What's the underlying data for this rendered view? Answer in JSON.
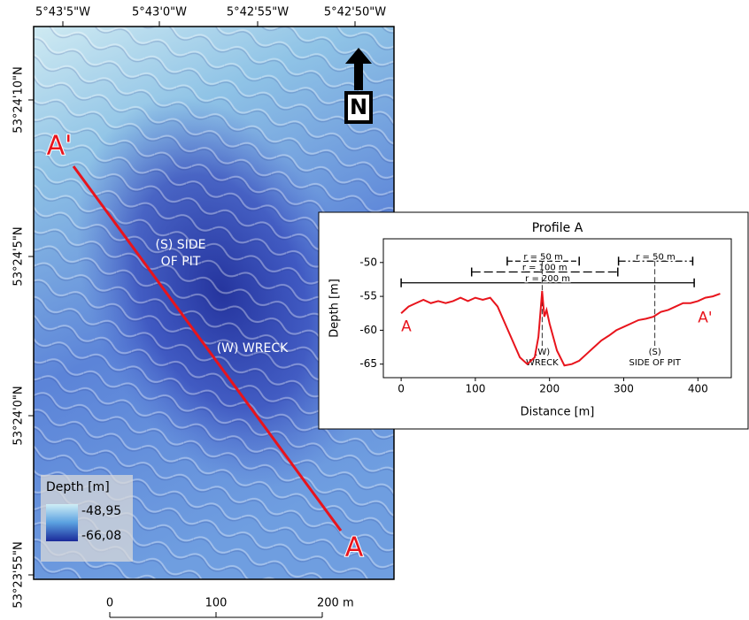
{
  "map": {
    "lon_labels": [
      "5°43'5\"W",
      "5°43'0\"W",
      "5°42'55\"W",
      "5°42'50\"W"
    ],
    "lat_labels": [
      "53°24'10\"N",
      "53°24'5\"N",
      "53°24'0\"N",
      "53°23'55\"N"
    ],
    "profile_start": "A",
    "profile_end": "A'",
    "side_of_pit": [
      "(S) SIDE",
      "OF PIT"
    ],
    "wreck": "(W) WRECK",
    "north": "N",
    "legend": {
      "title": "Depth [m]",
      "max": "-48,95",
      "min": "-66,08"
    },
    "scale_labels": [
      "0",
      "100",
      "200 m"
    ]
  },
  "chart_data": {
    "type": "line",
    "title": "Profile A",
    "x_label": "Distance [m]",
    "y_label": "Depth [m]",
    "xlim": [
      -24,
      445
    ],
    "ylim": [
      -67,
      -46.5
    ],
    "xticks": [
      0,
      100,
      200,
      300,
      400
    ],
    "yticks": [
      -65,
      -60,
      -55,
      -50
    ],
    "x": [
      0,
      5,
      10,
      20,
      30,
      40,
      50,
      60,
      70,
      80,
      90,
      100,
      110,
      120,
      130,
      140,
      150,
      160,
      170,
      180,
      185,
      188,
      190,
      193,
      196,
      200,
      210,
      220,
      230,
      240,
      250,
      260,
      270,
      280,
      290,
      300,
      310,
      320,
      330,
      340,
      350,
      360,
      370,
      380,
      390,
      400,
      410,
      420,
      430
    ],
    "series": [
      {
        "color": "#e8141c",
        "values": [
          -57.5,
          -57,
          -56.5,
          -56,
          -55.5,
          -56,
          -55.7,
          -56,
          -55.7,
          -55.2,
          -55.7,
          -55.2,
          -55.5,
          -55.2,
          -56.5,
          -59,
          -61.5,
          -64,
          -65,
          -64,
          -61,
          -57,
          -54.2,
          -58,
          -57,
          -59,
          -63,
          -65.2,
          -65,
          -64.5,
          -63.5,
          -62.5,
          -61.5,
          -60.8,
          -60,
          -59.5,
          -59,
          -58.5,
          -58.3,
          -58,
          -57.3,
          -57,
          -56.5,
          -56,
          -56,
          -55.7,
          -55.2,
          -55,
          -54.6
        ]
      }
    ],
    "annotations": {
      "ranges": [
        {
          "label": "r = 50 m",
          "x0": 143,
          "x1": 240,
          "y": -49.8,
          "style": "dashed"
        },
        {
          "label": "r = 100 m",
          "x0": 95,
          "x1": 292,
          "y": -51.4,
          "style": "longdash"
        },
        {
          "label": "r = 200 m",
          "x0": 0,
          "x1": 395,
          "y": -53,
          "style": "solid"
        },
        {
          "label": "r = 50 m",
          "x0": 293,
          "x1": 393,
          "y": -49.8,
          "style": "dashdot"
        }
      ],
      "markers": [
        {
          "x": 190,
          "y_top": -49.8,
          "y_bottom": -62.3,
          "label": [
            "(W)",
            "WRECK"
          ]
        },
        {
          "x": 342,
          "y_top": -49.8,
          "y_bottom": -62.3,
          "label": [
            "(S)",
            "SIDE OF PIT"
          ]
        }
      ],
      "end_labels": [
        {
          "text": "A",
          "x": 0,
          "y": -59.5
        },
        {
          "text": "A'",
          "x": 400,
          "y": -58.2
        }
      ]
    }
  }
}
